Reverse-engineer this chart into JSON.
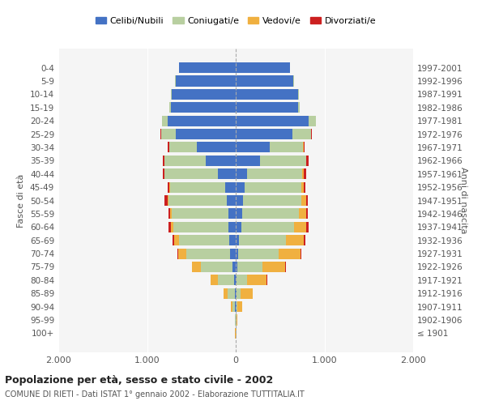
{
  "age_groups": [
    "100+",
    "95-99",
    "90-94",
    "85-89",
    "80-84",
    "75-79",
    "70-74",
    "65-69",
    "60-64",
    "55-59",
    "50-54",
    "45-49",
    "40-44",
    "35-39",
    "30-34",
    "25-29",
    "20-24",
    "15-19",
    "10-14",
    "5-9",
    "0-4"
  ],
  "birth_years": [
    "≤ 1901",
    "1902-1906",
    "1907-1911",
    "1912-1916",
    "1917-1921",
    "1922-1926",
    "1927-1931",
    "1932-1936",
    "1937-1941",
    "1942-1946",
    "1947-1951",
    "1952-1956",
    "1957-1961",
    "1962-1966",
    "1967-1971",
    "1972-1976",
    "1977-1981",
    "1982-1986",
    "1987-1991",
    "1992-1996",
    "1997-2001"
  ],
  "male": {
    "celibi": [
      2,
      2,
      5,
      10,
      20,
      40,
      60,
      70,
      80,
      85,
      100,
      120,
      200,
      340,
      440,
      680,
      770,
      730,
      720,
      680,
      640
    ],
    "coniugati": [
      2,
      5,
      30,
      80,
      180,
      350,
      500,
      570,
      620,
      640,
      660,
      620,
      600,
      460,
      310,
      160,
      60,
      20,
      10,
      5,
      2
    ],
    "vedovi": [
      1,
      5,
      20,
      50,
      80,
      100,
      90,
      50,
      30,
      15,
      10,
      8,
      6,
      4,
      3,
      2,
      1,
      0,
      0,
      0,
      0
    ],
    "divorziati": [
      0,
      0,
      0,
      0,
      2,
      5,
      10,
      20,
      30,
      20,
      30,
      20,
      20,
      20,
      10,
      5,
      2,
      0,
      0,
      0,
      0
    ]
  },
  "female": {
    "nubili": [
      2,
      2,
      5,
      8,
      10,
      20,
      30,
      40,
      60,
      70,
      80,
      100,
      130,
      270,
      380,
      640,
      820,
      700,
      700,
      650,
      610
    ],
    "coniugate": [
      2,
      3,
      15,
      50,
      120,
      280,
      450,
      530,
      600,
      640,
      660,
      640,
      620,
      520,
      380,
      210,
      80,
      20,
      10,
      5,
      2
    ],
    "vedove": [
      2,
      10,
      50,
      130,
      220,
      260,
      250,
      200,
      130,
      80,
      50,
      25,
      15,
      8,
      5,
      3,
      2,
      0,
      0,
      0,
      0
    ],
    "divorziate": [
      0,
      0,
      0,
      0,
      2,
      5,
      10,
      15,
      30,
      20,
      25,
      20,
      25,
      20,
      10,
      5,
      2,
      0,
      0,
      0,
      0
    ]
  },
  "colors": {
    "celibi": "#4472c4",
    "coniugati": "#b8cfa0",
    "vedovi": "#f0b040",
    "divorziati": "#cc2020"
  },
  "title": "Popolazione per età, sesso e stato civile - 2002",
  "subtitle": "COMUNE DI RIETI - Dati ISTAT 1° gennaio 2002 - Elaborazione TUTTITALIA.IT",
  "ylabel_left": "Fasce di età",
  "ylabel_right": "Anni di nascita",
  "xlim": 2000,
  "bg_color": "#f5f5f5",
  "bar_height": 0.8
}
